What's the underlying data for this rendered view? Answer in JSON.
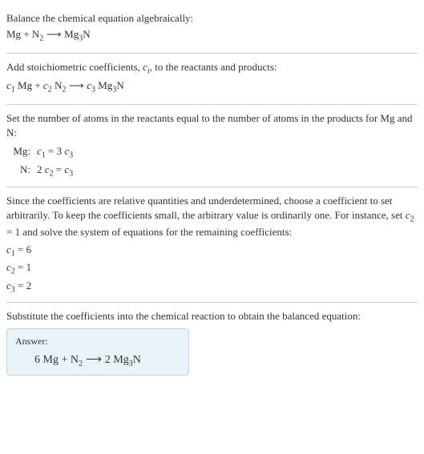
{
  "section1": {
    "line1_pre": "Balance the chemical equation algebraically:",
    "eq": {
      "lhs1": "Mg",
      "plus": " + ",
      "lhs2": "N",
      "lhs2_sub": "2",
      "arrow": " ⟶ ",
      "rhs": "Mg",
      "rhs_sub1": "3",
      "rhs2": "N"
    }
  },
  "section2": {
    "line1_a": "Add stoichiometric coefficients, ",
    "line1_ci": "c",
    "line1_ci_sub": "i",
    "line1_b": ", to the reactants and products:",
    "eq": {
      "c1": "c",
      "c1_sub": "1",
      "sp1": " Mg + ",
      "c2": "c",
      "c2_sub": "2",
      "sp2": " N",
      "n_sub": "2",
      "arrow": " ⟶ ",
      "c3": "c",
      "c3_sub": "3",
      "sp3": " Mg",
      "mg_sub": "3",
      "sp4": "N"
    }
  },
  "section3": {
    "line1": "Set the number of atoms in the reactants equal to the number of atoms in the products for Mg and N:",
    "rows": [
      {
        "label": "Mg:",
        "lhs_c": "c",
        "lhs_sub": "1",
        "mid": " = 3 ",
        "rhs_c": "c",
        "rhs_sub": "3"
      },
      {
        "label": "N:",
        "pre": "2 ",
        "lhs_c": "c",
        "lhs_sub": "2",
        "mid": " = ",
        "rhs_c": "c",
        "rhs_sub": "3"
      }
    ]
  },
  "section4": {
    "line1_a": "Since the coefficients are relative quantities and underdetermined, choose a coefficient to set arbitrarily. To keep the coefficients small, the arbitrary value is ordinarily one. For instance, set ",
    "c2": "c",
    "c2_sub": "2",
    "line1_b": " = 1 and solve the system of equations for the remaining coefficients:",
    "coefs": [
      {
        "c": "c",
        "sub": "1",
        "val": " = 6"
      },
      {
        "c": "c",
        "sub": "2",
        "val": " = 1"
      },
      {
        "c": "c",
        "sub": "3",
        "val": " = 2"
      }
    ]
  },
  "section5": {
    "line1": "Substitute the coefficients into the chemical reaction to obtain the balanced equation:",
    "answer_label": "Answer:",
    "answer": {
      "a": "6 Mg + N",
      "sub1": "2",
      "arrow": " ⟶ ",
      "b": "2 Mg",
      "sub2": "3",
      "c": "N"
    }
  },
  "colors": {
    "text": "#333333",
    "border": "#cccccc",
    "answer_bg": "#e8f4f8",
    "answer_border": "#b8d8e0"
  }
}
